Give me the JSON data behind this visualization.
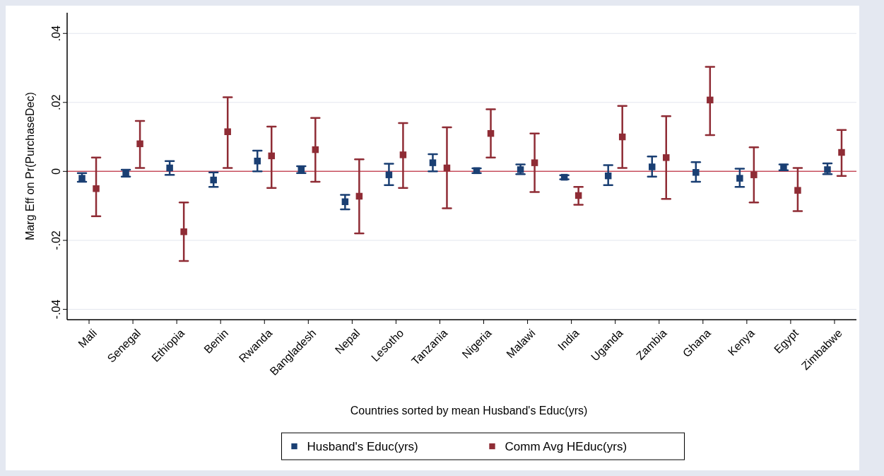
{
  "chart_data": {
    "type": "scatter",
    "xlabel": "Countries sorted by mean Husband's Educ(yrs)",
    "ylabel": "Marg Eff on Pr(PurchaseDec)",
    "categories": [
      "Mali",
      "Senegal",
      "Ethiopia",
      "Benin",
      "Rwanda",
      "Bangladesh",
      "Nepal",
      "Lesotho",
      "Tanzania",
      "Nigeria",
      "Malawi",
      "India",
      "Uganda",
      "Zambia",
      "Ghana",
      "Kenya",
      "Egypt",
      "Zimbabwe"
    ],
    "series": [
      {
        "name": "Husband's Educ(yrs)",
        "color": "#1a3f73",
        "values": [
          -0.002,
          -0.0005,
          0.001,
          -0.0025,
          0.003,
          0.0005,
          -0.0088,
          -0.001,
          0.0025,
          0.0002,
          0.0005,
          -0.0017,
          -0.0013,
          0.0013,
          -0.0003,
          -0.002,
          0.0012,
          0.0005
        ],
        "errors": [
          [
            -0.003,
            -0.0005
          ],
          [
            -0.0015,
            0.0005
          ],
          [
            -0.001,
            0.003
          ],
          [
            -0.0045,
            -0.0003
          ],
          [
            0,
            0.006
          ],
          [
            -0.0005,
            0.0015
          ],
          [
            -0.011,
            -0.0068
          ],
          [
            -0.004,
            0.0022
          ],
          [
            0,
            0.005
          ],
          [
            -0.0005,
            0.0009
          ],
          [
            -0.0008,
            0.002
          ],
          [
            -0.0023,
            -0.0011
          ],
          [
            -0.004,
            0.0018
          ],
          [
            -0.0015,
            0.0043
          ],
          [
            -0.003,
            0.0027
          ],
          [
            -0.0045,
            0.0008
          ],
          [
            0.0003,
            0.002
          ],
          [
            -0.0008,
            0.0023
          ]
        ]
      },
      {
        "name": "Comm Avg HEduc(yrs)",
        "color": "#8f2c35",
        "values": [
          -0.005,
          0.008,
          -0.0175,
          0.0115,
          0.0045,
          0.0063,
          -0.0072,
          0.0048,
          0.001,
          0.011,
          0.0025,
          -0.007,
          0.01,
          0.004,
          0.0207,
          -0.001,
          -0.0055,
          0.0055
        ],
        "errors": [
          [
            -0.013,
            0.004
          ],
          [
            0.001,
            0.0146
          ],
          [
            -0.026,
            -0.009
          ],
          [
            0.001,
            0.0215
          ],
          [
            -0.0048,
            0.013
          ],
          [
            -0.003,
            0.0155
          ],
          [
            -0.018,
            0.0035
          ],
          [
            -0.0048,
            0.014
          ],
          [
            -0.0107,
            0.0128
          ],
          [
            0.004,
            0.018
          ],
          [
            -0.006,
            0.011
          ],
          [
            -0.0097,
            -0.0045
          ],
          [
            0.001,
            0.019
          ],
          [
            -0.008,
            0.016
          ],
          [
            0.0105,
            0.0303
          ],
          [
            -0.009,
            0.007
          ],
          [
            -0.0115,
            0.001
          ],
          [
            -0.0013,
            0.012
          ]
        ]
      }
    ],
    "ylim": [
      -0.043,
      0.046
    ],
    "yticks": [
      {
        "value": -0.04,
        "label": "-.04"
      },
      {
        "value": -0.02,
        "label": "-.02"
      },
      0,
      {
        "value": 0.02,
        "label": ".02"
      },
      {
        "value": 0.04,
        "label": ".04"
      }
    ],
    "ref_lines": [
      {
        "axis": "y",
        "value": 0,
        "color": "#c8505f"
      }
    ],
    "grid": "y",
    "legend": "bottom",
    "marker": "square"
  }
}
